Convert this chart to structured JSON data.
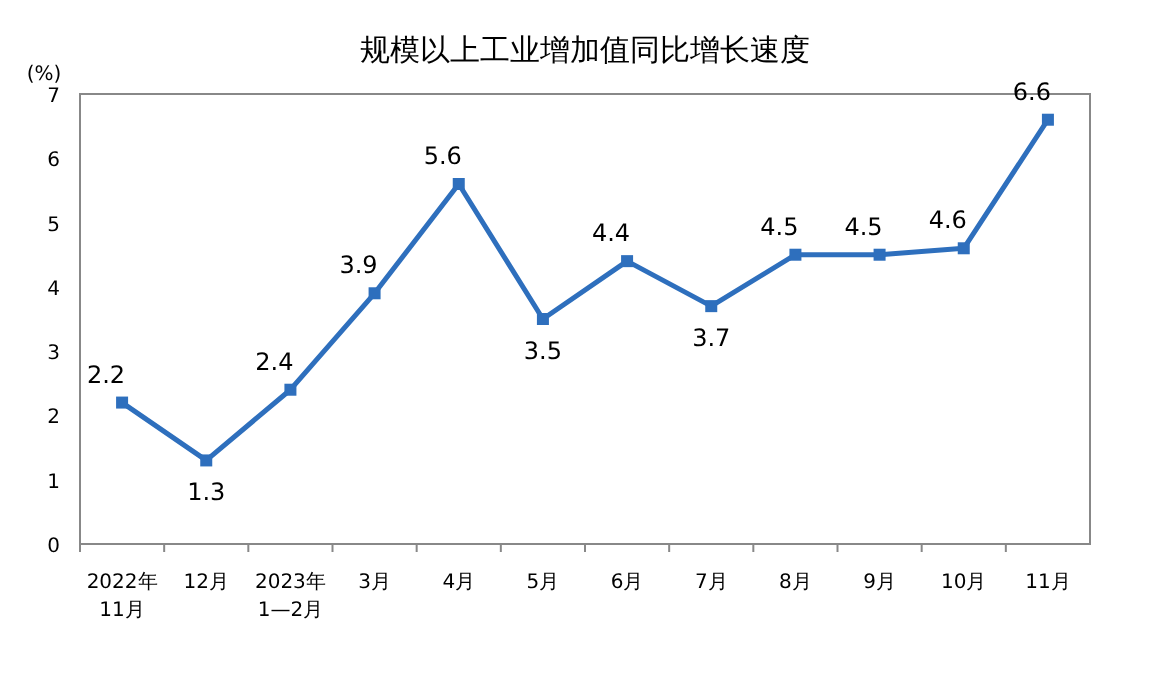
{
  "chart_data": {
    "type": "line",
    "title": "规模以上工业增加值同比增长速度",
    "ylabel": "(%)",
    "categories": [
      "2022年\n11月",
      "12月",
      "2023年\n1—2月",
      "3月",
      "4月",
      "5月",
      "6月",
      "7月",
      "8月",
      "9月",
      "10月",
      "11月"
    ],
    "series": [
      {
        "color": "#2e6fbd",
        "values": [
          2.2,
          1.3,
          2.4,
          3.9,
          5.6,
          3.5,
          4.4,
          3.7,
          4.5,
          4.5,
          4.6,
          6.6
        ]
      }
    ],
    "ylim": [
      0,
      7
    ],
    "yticks": [
      0,
      1,
      2,
      3,
      4,
      5,
      6,
      7
    ],
    "marker": "square",
    "line_style": "solid",
    "data_labels": true,
    "grid": false
  }
}
